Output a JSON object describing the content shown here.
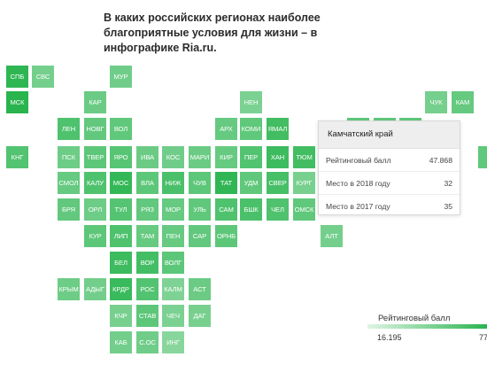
{
  "title": "В каких российских регионах наиболее благоприятные условия для жизни – в инфографике Ria.ru.",
  "tooltip": {
    "region": "Камчатский край",
    "rows": [
      {
        "label": "Рейтинговый балл",
        "value": "47.868"
      },
      {
        "label": "Место в 2018 году",
        "value": "32"
      },
      {
        "label": "Место в 2017 году",
        "value": "35"
      }
    ]
  },
  "legend": {
    "title": "Рейтинговый балл",
    "min": "16.195",
    "max": "77"
  },
  "colors": {
    "scale_low": "#dff5e4",
    "scale_high": "#29b44e"
  },
  "regions": [
    {
      "code": "СПБ",
      "score": 0.96
    },
    {
      "code": "СВС",
      "score": 0.45
    },
    {
      "code": "МУР",
      "score": 0.48
    },
    {
      "code": "МСК",
      "score": 1.0
    },
    {
      "code": "КАР",
      "score": 0.52
    },
    {
      "code": "НЕН",
      "score": 0.4
    },
    {
      "code": "ЧУК",
      "score": 0.44
    },
    {
      "code": "КАМ",
      "score": 0.56
    },
    {
      "code": "ЛЕН",
      "score": 0.72
    },
    {
      "code": "НОВГ",
      "score": 0.58
    },
    {
      "code": "ВОЛ",
      "score": 0.6
    },
    {
      "code": "АРХ",
      "score": 0.55
    },
    {
      "code": "КОМИ",
      "score": 0.6
    },
    {
      "code": "ЯМАЛ",
      "score": 0.82
    },
    {
      "code": "КНГ",
      "score": 0.7
    },
    {
      "code": "ПСК",
      "score": 0.5
    },
    {
      "code": "ТВЕР",
      "score": 0.62
    },
    {
      "code": "ЯРО",
      "score": 0.66
    },
    {
      "code": "ИВА",
      "score": 0.52
    },
    {
      "code": "КОС",
      "score": 0.48
    },
    {
      "code": "МАРИ",
      "score": 0.52
    },
    {
      "code": "КИР",
      "score": 0.55
    },
    {
      "code": "ПЕР",
      "score": 0.7
    },
    {
      "code": "ХАН",
      "score": 0.85
    },
    {
      "code": "ТЮМ",
      "score": 0.82
    },
    {
      "code": "СМОЛ",
      "score": 0.55
    },
    {
      "code": "КАЛУ",
      "score": 0.72
    },
    {
      "code": "МОС",
      "score": 0.92
    },
    {
      "code": "ВЛА",
      "score": 0.62
    },
    {
      "code": "НИЖ",
      "score": 0.75
    },
    {
      "code": "ЧУВ",
      "score": 0.62
    },
    {
      "code": "ТАТ",
      "score": 0.95
    },
    {
      "code": "УДМ",
      "score": 0.6
    },
    {
      "code": "СВЕР",
      "score": 0.78
    },
    {
      "code": "КУРГ",
      "score": 0.42
    },
    {
      "code": "БРЯ",
      "score": 0.58
    },
    {
      "code": "ОРЛ",
      "score": 0.5
    },
    {
      "code": "ТУЛ",
      "score": 0.68
    },
    {
      "code": "РЯЗ",
      "score": 0.58
    },
    {
      "code": "МОР",
      "score": 0.55
    },
    {
      "code": "УЛЬ",
      "score": 0.6
    },
    {
      "code": "САМ",
      "score": 0.72
    },
    {
      "code": "БШК",
      "score": 0.75
    },
    {
      "code": "ЧЕЛ",
      "score": 0.72
    },
    {
      "code": "ОМСК",
      "score": 0.6
    },
    {
      "code": "КУР",
      "score": 0.62
    },
    {
      "code": "ЛИП",
      "score": 0.72
    },
    {
      "code": "ТАМ",
      "score": 0.55
    },
    {
      "code": "ПЕН",
      "score": 0.55
    },
    {
      "code": "САР",
      "score": 0.58
    },
    {
      "code": "ОРНБ",
      "score": 0.62
    },
    {
      "code": "АЛТ",
      "score": 0.45
    },
    {
      "code": "БЕЛ",
      "score": 0.85
    },
    {
      "code": "ВОР",
      "score": 0.8
    },
    {
      "code": "ВОЛГ",
      "score": 0.62
    },
    {
      "code": "КРЫМ",
      "score": 0.5
    },
    {
      "code": "АДЫГ",
      "score": 0.46
    },
    {
      "code": "КРДР",
      "score": 0.88
    },
    {
      "code": "РОС",
      "score": 0.7
    },
    {
      "code": "КАЛМ",
      "score": 0.38
    },
    {
      "code": "АСТ",
      "score": 0.52
    },
    {
      "code": "КЧР",
      "score": 0.42
    },
    {
      "code": "СТАВ",
      "score": 0.62
    },
    {
      "code": "ЧЕЧ",
      "score": 0.4
    },
    {
      "code": "ДАГ",
      "score": 0.42
    },
    {
      "code": "КАБ",
      "score": 0.46
    },
    {
      "code": "С.ОС",
      "score": 0.48
    },
    {
      "code": "ИНГ",
      "score": 0.3
    }
  ]
}
